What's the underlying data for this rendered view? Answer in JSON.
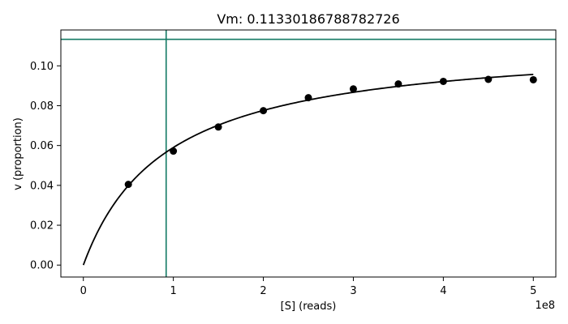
{
  "chart_data": {
    "type": "scatter",
    "title": "Vm: 0.11330186788782726",
    "xlabel": "[S] (reads)",
    "ylabel": "v (proportion)",
    "x_offset_label": "1e8",
    "x_scale": 100000000,
    "xlim": [
      -25000000,
      525000000
    ],
    "ylim": [
      -0.006,
      0.118
    ],
    "x_ticks": [
      0,
      100000000,
      200000000,
      300000000,
      400000000,
      500000000
    ],
    "x_tick_labels": [
      "0",
      "1",
      "2",
      "3",
      "4",
      "5"
    ],
    "y_ticks": [
      0.0,
      0.02,
      0.04,
      0.06,
      0.08,
      0.1
    ],
    "y_tick_labels": [
      "0.00",
      "0.02",
      "0.04",
      "0.06",
      "0.08",
      "0.10"
    ],
    "grid": false,
    "series": [
      {
        "kind": "points",
        "color": "#000000",
        "x": [
          50000000,
          100000000,
          150000000,
          200000000,
          250000000,
          300000000,
          350000000,
          400000000,
          450000000,
          500000000
        ],
        "y": [
          0.0405,
          0.0572,
          0.0693,
          0.0775,
          0.084,
          0.0884,
          0.0909,
          0.0922,
          0.0932,
          0.093
        ]
      },
      {
        "kind": "fit-curve",
        "model": "michaelis-menten",
        "color": "#000000",
        "vmax": 0.11330186788782726,
        "km": 92000000,
        "x_range": [
          0,
          500000000
        ]
      }
    ],
    "reference_lines": [
      {
        "orientation": "horizontal",
        "value": 0.11330186788782726,
        "color": "#147a64"
      },
      {
        "orientation": "vertical",
        "value": 92000000,
        "color": "#147a64"
      }
    ]
  }
}
